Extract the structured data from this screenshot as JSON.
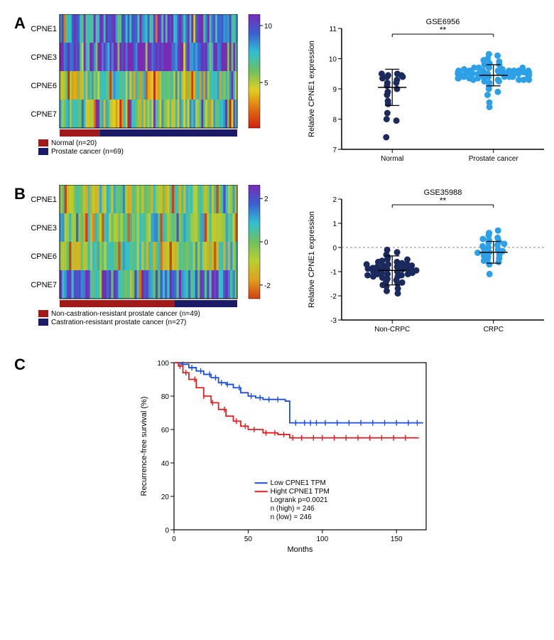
{
  "panelA": {
    "label": "A",
    "heatmap": {
      "rows": [
        "CPNE1",
        "CPNE3",
        "CPNE6",
        "CPNE7"
      ],
      "row_colors_base": [
        "#3a60d0",
        "#2c2c8c",
        "#6fc060",
        "#6fc060"
      ],
      "n_cols": 89,
      "group_bar": {
        "split": 20,
        "colors": [
          "#a01a1a",
          "#1a1a66"
        ]
      },
      "colorbar": {
        "min_label": "",
        "ticks": [
          {
            "frac": 0.1,
            "label": "10"
          },
          {
            "frac": 0.6,
            "label": "5"
          }
        ],
        "gradient": [
          "#7a2bb5",
          "#3a60d0",
          "#30c0d0",
          "#6fc060",
          "#e0d020",
          "#e07010",
          "#d02010"
        ]
      },
      "legend": [
        {
          "color": "#a01a1a",
          "label": "Normal (n=20)"
        },
        {
          "color": "#1a1a66",
          "label": "Prostate cancer (n=69)"
        }
      ]
    },
    "scatter": {
      "title": "GSE6956",
      "ylabel": "Relative CPNE1 expression",
      "xlabels": [
        "Normal",
        "Prostate cancer"
      ],
      "ylim": [
        7,
        11
      ],
      "ytick_step": 1,
      "sig": "**",
      "groups": [
        {
          "color": "#1a2a5c",
          "mean": 9.05,
          "err": 0.6,
          "points": [
            9.2,
            9.1,
            9.45,
            9.4,
            9.3,
            9.5,
            9.35,
            8.9,
            8.8,
            9.0,
            8.5,
            8.6,
            9.5,
            9.45,
            8.0,
            8.2,
            7.95,
            7.4,
            9.4,
            9.2
          ]
        },
        {
          "color": "#2da0e8",
          "mean": 9.45,
          "err": 0.35,
          "points": [
            9.7,
            9.6,
            9.75,
            9.5,
            9.55,
            9.4,
            9.45,
            9.5,
            9.3,
            9.35,
            9.4,
            9.6,
            9.65,
            9.7,
            9.8,
            9.85,
            9.9,
            9.95,
            10.0,
            10.1,
            10.15,
            9.2,
            9.25,
            9.1,
            9.0,
            8.9,
            8.8,
            8.55,
            8.4,
            9.35,
            9.4,
            9.5,
            9.55,
            9.3,
            9.6,
            9.5,
            9.45,
            9.7,
            9.6,
            9.55,
            9.5,
            9.45,
            9.4,
            9.35,
            9.3,
            9.25,
            9.55,
            9.6,
            9.8,
            9.5,
            9.4,
            9.3,
            9.45,
            9.35,
            9.6,
            9.5,
            9.65,
            9.7,
            9.4,
            9.55,
            9.5,
            9.6,
            9.45,
            9.35,
            9.3,
            9.5,
            9.45,
            9.6,
            9.55
          ]
        }
      ]
    }
  },
  "panelB": {
    "label": "B",
    "heatmap": {
      "rows": [
        "CPNE1",
        "CPNE3",
        "CPNE6",
        "CPNE7"
      ],
      "row_colors_base": [
        "#a8c840",
        "#6fc060",
        "#88c040",
        "#4090d0"
      ],
      "n_cols": 76,
      "group_bar": {
        "split": 49,
        "colors": [
          "#a01a1a",
          "#1a1a66"
        ]
      },
      "colorbar": {
        "ticks": [
          {
            "frac": 0.12,
            "label": "2"
          },
          {
            "frac": 0.5,
            "label": "0"
          },
          {
            "frac": 0.88,
            "label": "-2"
          }
        ],
        "gradient": [
          "#7a2bb5",
          "#3a60d0",
          "#30c0d0",
          "#6fc060",
          "#b8d030",
          "#e0a020",
          "#d04010"
        ]
      },
      "legend": [
        {
          "color": "#a01a1a",
          "label": "Non-castration-resistant prostate cancer (n=49)"
        },
        {
          "color": "#1a1a66",
          "label": "Castration-resistant prostate cancer (n=27)"
        }
      ]
    },
    "scatter": {
      "title": "GSE35988",
      "ylabel": "Relative CPNE1 expression",
      "xlabels": [
        "Non-CRPC",
        "CRPC"
      ],
      "ylim": [
        -3,
        2
      ],
      "ytick_step": 1,
      "zeroline": true,
      "sig": "**",
      "groups": [
        {
          "color": "#1a2a5c",
          "mean": -0.95,
          "err": 0.6,
          "points": [
            -0.5,
            -0.6,
            -0.7,
            -0.8,
            -0.9,
            -1.0,
            -1.1,
            -1.2,
            -0.55,
            -0.65,
            -0.75,
            -0.85,
            -0.95,
            -1.05,
            -1.15,
            -1.3,
            -1.35,
            -1.4,
            -0.4,
            -0.3,
            -0.9,
            -1.0,
            -0.8,
            -1.1,
            -0.7,
            -1.5,
            -1.6,
            -1.7,
            -1.8,
            -1.9,
            -1.55,
            -1.45,
            -0.6,
            -0.5,
            -0.9,
            -1.0,
            -1.1,
            -0.85,
            -0.75,
            -1.2,
            -0.2,
            -0.1,
            -0.93,
            -1.05,
            -0.88,
            -0.7,
            -1.25,
            -1.15,
            -0.95
          ]
        },
        {
          "color": "#2da0e8",
          "mean": -0.2,
          "err": 0.45,
          "points": [
            0.6,
            0.7,
            0.5,
            0.4,
            0.3,
            0.2,
            0.1,
            0.0,
            -0.1,
            -0.2,
            -0.3,
            -0.4,
            -0.5,
            -0.6,
            -0.7,
            -1.1,
            -0.45,
            -0.25,
            -0.15,
            0.05,
            -0.05,
            0.15,
            0.25,
            -0.35,
            -0.55,
            0.35,
            -0.22
          ]
        }
      ]
    }
  },
  "panelC": {
    "label": "C",
    "survival": {
      "ylabel": "Recurrence-free survival (%)",
      "xlabel": "Months",
      "xlim": [
        0,
        170
      ],
      "xtick_step": 50,
      "ylim": [
        0,
        100
      ],
      "ytick_step": 20,
      "legend": [
        {
          "color": "#1a4de0",
          "label": "Low CPNE1 TPM"
        },
        {
          "color": "#e02020",
          "label": "Hight CPNE1 TPM"
        }
      ],
      "annot": [
        "Logrank p=0.0021",
        "n (high) = 246",
        "n (low) = 246"
      ],
      "curves": [
        {
          "color": "#1a4de0",
          "points": [
            [
              0,
              100
            ],
            [
              5,
              99
            ],
            [
              10,
              97
            ],
            [
              15,
              95
            ],
            [
              20,
              93
            ],
            [
              25,
              91
            ],
            [
              30,
              88
            ],
            [
              35,
              87
            ],
            [
              40,
              85
            ],
            [
              45,
              82
            ],
            [
              50,
              80
            ],
            [
              55,
              79
            ],
            [
              60,
              78
            ],
            [
              70,
              78
            ],
            [
              75,
              77
            ],
            [
              78,
              64
            ],
            [
              90,
              64
            ],
            [
              100,
              64
            ],
            [
              120,
              64
            ],
            [
              150,
              64
            ],
            [
              168,
              64
            ]
          ],
          "ticks": [
            6,
            12,
            18,
            24,
            28,
            32,
            36,
            44,
            52,
            58,
            64,
            70,
            82,
            88,
            92,
            96,
            102,
            110,
            118,
            126,
            134,
            142,
            150,
            158,
            164
          ]
        },
        {
          "color": "#e02020",
          "points": [
            [
              0,
              100
            ],
            [
              3,
              98
            ],
            [
              6,
              94
            ],
            [
              10,
              90
            ],
            [
              15,
              85
            ],
            [
              20,
              80
            ],
            [
              25,
              76
            ],
            [
              30,
              72
            ],
            [
              35,
              68
            ],
            [
              40,
              65
            ],
            [
              45,
              62
            ],
            [
              50,
              60
            ],
            [
              60,
              58
            ],
            [
              70,
              57
            ],
            [
              78,
              55
            ],
            [
              90,
              55
            ],
            [
              110,
              55
            ],
            [
              130,
              55
            ],
            [
              150,
              55
            ],
            [
              165,
              55
            ]
          ],
          "ticks": [
            4,
            8,
            14,
            20,
            26,
            34,
            42,
            48,
            54,
            62,
            68,
            74,
            80,
            86,
            94,
            100,
            108,
            116,
            124,
            132,
            140,
            148,
            156
          ]
        }
      ]
    }
  },
  "style": {
    "font_family": "Arial",
    "axis_color": "#000000",
    "tick_fontsize": 11,
    "label_fontsize": 12
  }
}
